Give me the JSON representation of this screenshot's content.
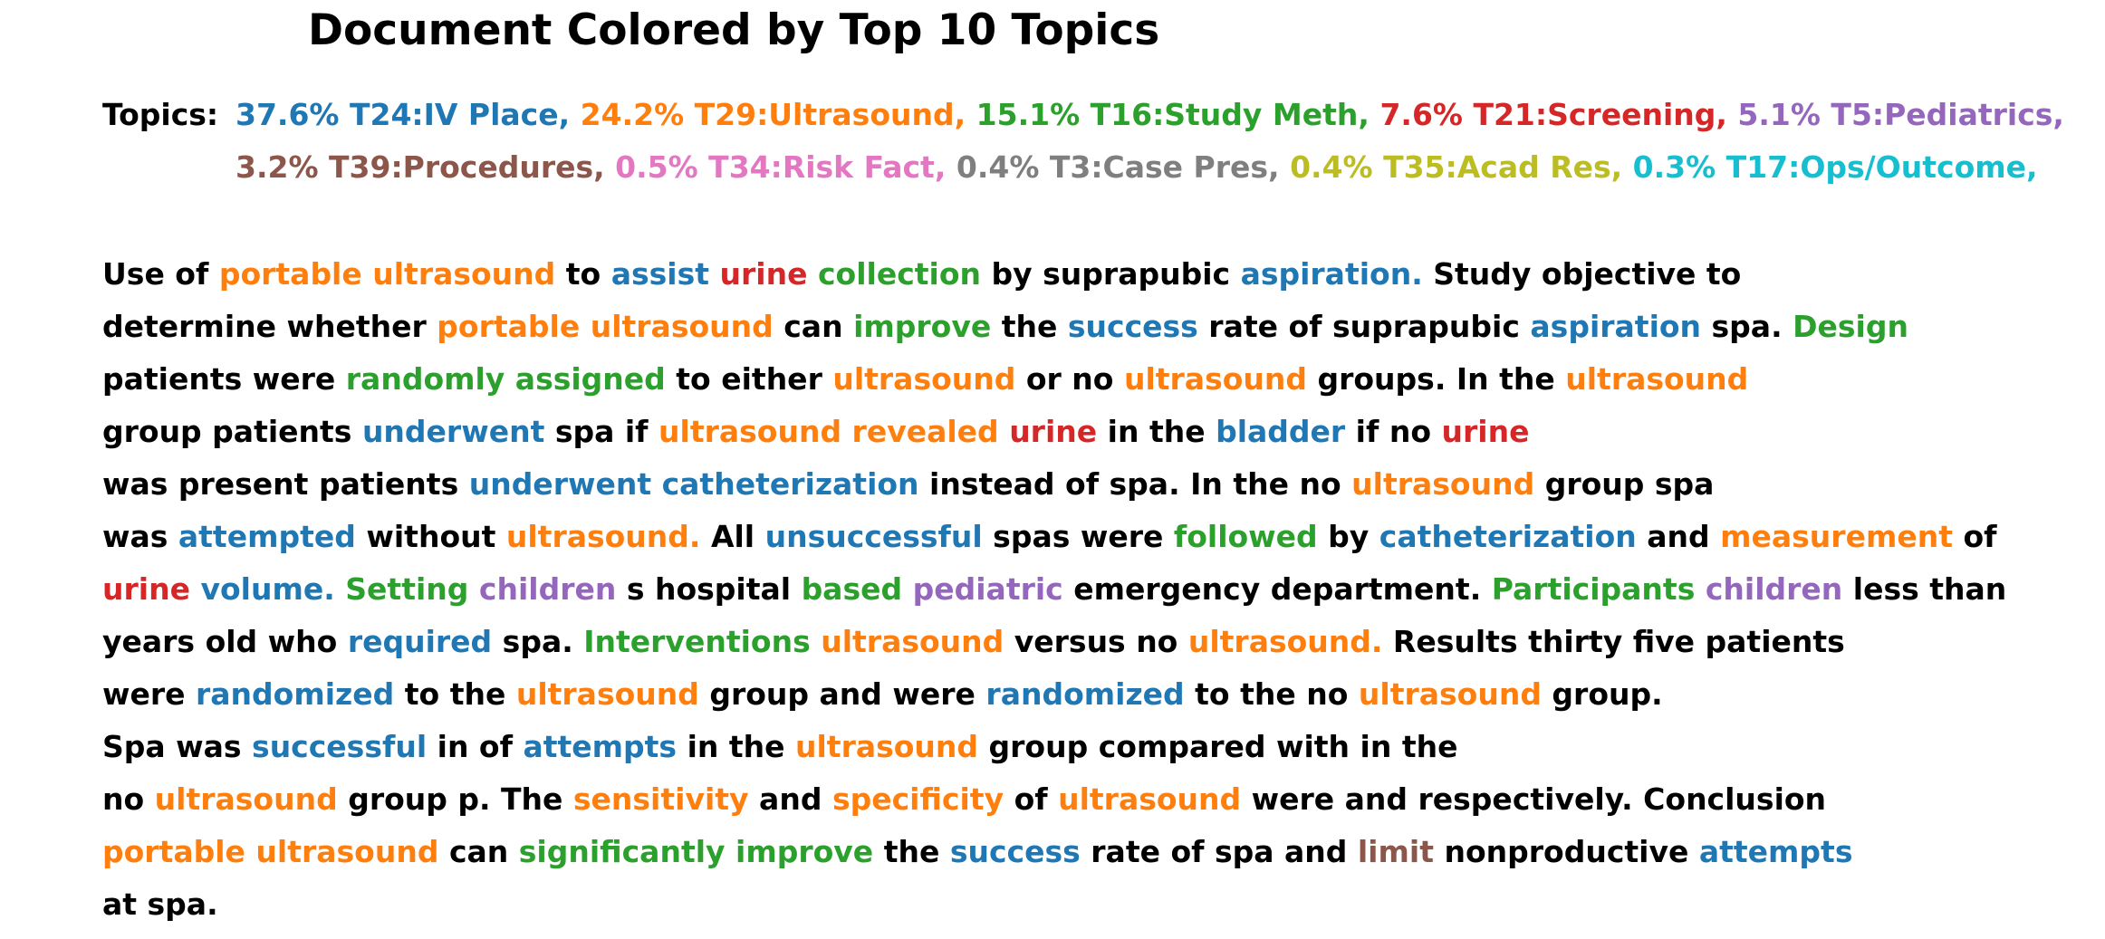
{
  "title": "Document Colored by Top 10 Topics",
  "topics_label": "Topics:",
  "colors": {
    "T24": "#1f77b4",
    "T29": "#ff7f0e",
    "T16": "#2ca02c",
    "T21": "#d62728",
    "T5": "#9467bd",
    "T39": "#8c564b",
    "T34": "#e377c2",
    "T3": "#7f7f7f",
    "T35": "#bcbd22",
    "T17": "#17becf",
    "none": "#000000"
  },
  "topic_lines": [
    [
      {
        "text": "37.6% T24:IV Place,",
        "topic": "T24"
      },
      {
        "text": "24.2% T29:Ultrasound,",
        "topic": "T29"
      },
      {
        "text": "15.1% T16:Study Meth,",
        "topic": "T16"
      },
      {
        "text": "7.6% T21:Screening,",
        "topic": "T21"
      },
      {
        "text": "5.1% T5:Pediatrics,",
        "topic": "T5"
      }
    ],
    [
      {
        "text": "3.2% T39:Procedures,",
        "topic": "T39"
      },
      {
        "text": "0.5% T34:Risk Fact,",
        "topic": "T34"
      },
      {
        "text": "0.4% T3:Case Pres,",
        "topic": "T3"
      },
      {
        "text": "0.4% T35:Acad Res,",
        "topic": "T35"
      },
      {
        "text": "0.3% T17:Ops/Outcome,",
        "topic": "T17"
      }
    ]
  ],
  "document_lines": [
    [
      {
        "text": "Use of ",
        "topic": null
      },
      {
        "text": "portable ultrasound",
        "topic": "T29"
      },
      {
        "text": " to ",
        "topic": null
      },
      {
        "text": "assist",
        "topic": "T24"
      },
      {
        "text": " ",
        "topic": null
      },
      {
        "text": "urine",
        "topic": "T21"
      },
      {
        "text": " ",
        "topic": null
      },
      {
        "text": "collection",
        "topic": "T16"
      },
      {
        "text": " by suprapubic ",
        "topic": null
      },
      {
        "text": "aspiration.",
        "topic": "T24"
      },
      {
        "text": " Study objective to",
        "topic": null
      }
    ],
    [
      {
        "text": "determine whether ",
        "topic": null
      },
      {
        "text": "portable ultrasound",
        "topic": "T29"
      },
      {
        "text": " can ",
        "topic": null
      },
      {
        "text": "improve",
        "topic": "T16"
      },
      {
        "text": " the ",
        "topic": null
      },
      {
        "text": "success",
        "topic": "T24"
      },
      {
        "text": " rate of suprapubic ",
        "topic": null
      },
      {
        "text": "aspiration",
        "topic": "T24"
      },
      {
        "text": " spa. ",
        "topic": null
      },
      {
        "text": "Design",
        "topic": "T16"
      }
    ],
    [
      {
        "text": "patients were ",
        "topic": null
      },
      {
        "text": "randomly assigned",
        "topic": "T16"
      },
      {
        "text": " to either ",
        "topic": null
      },
      {
        "text": "ultrasound",
        "topic": "T29"
      },
      {
        "text": " or no ",
        "topic": null
      },
      {
        "text": "ultrasound",
        "topic": "T29"
      },
      {
        "text": " groups. In the ",
        "topic": null
      },
      {
        "text": "ultrasound",
        "topic": "T29"
      }
    ],
    [
      {
        "text": "group patients ",
        "topic": null
      },
      {
        "text": "underwent",
        "topic": "T24"
      },
      {
        "text": " spa if ",
        "topic": null
      },
      {
        "text": "ultrasound revealed",
        "topic": "T29"
      },
      {
        "text": " ",
        "topic": null
      },
      {
        "text": "urine",
        "topic": "T21"
      },
      {
        "text": " in the ",
        "topic": null
      },
      {
        "text": "bladder",
        "topic": "T24"
      },
      {
        "text": " if no ",
        "topic": null
      },
      {
        "text": "urine",
        "topic": "T21"
      }
    ],
    [
      {
        "text": "was present patients ",
        "topic": null
      },
      {
        "text": "underwent catheterization",
        "topic": "T24"
      },
      {
        "text": " instead of spa. In the no ",
        "topic": null
      },
      {
        "text": "ultrasound",
        "topic": "T29"
      },
      {
        "text": " group spa",
        "topic": null
      }
    ],
    [
      {
        "text": "was ",
        "topic": null
      },
      {
        "text": "attempted",
        "topic": "T24"
      },
      {
        "text": " without ",
        "topic": null
      },
      {
        "text": "ultrasound.",
        "topic": "T29"
      },
      {
        "text": " All ",
        "topic": null
      },
      {
        "text": "unsuccessful",
        "topic": "T24"
      },
      {
        "text": " spas were ",
        "topic": null
      },
      {
        "text": "followed",
        "topic": "T16"
      },
      {
        "text": " by ",
        "topic": null
      },
      {
        "text": "catheterization",
        "topic": "T24"
      },
      {
        "text": " and ",
        "topic": null
      },
      {
        "text": "measurement",
        "topic": "T29"
      },
      {
        "text": " of",
        "topic": null
      }
    ],
    [
      {
        "text": "urine",
        "topic": "T21"
      },
      {
        "text": " ",
        "topic": null
      },
      {
        "text": "volume.",
        "topic": "T24"
      },
      {
        "text": " ",
        "topic": null
      },
      {
        "text": "Setting",
        "topic": "T16"
      },
      {
        "text": " ",
        "topic": null
      },
      {
        "text": "children",
        "topic": "T5"
      },
      {
        "text": " s hospital ",
        "topic": null
      },
      {
        "text": "based",
        "topic": "T16"
      },
      {
        "text": " ",
        "topic": null
      },
      {
        "text": "pediatric",
        "topic": "T5"
      },
      {
        "text": " emergency department. ",
        "topic": null
      },
      {
        "text": "Participants",
        "topic": "T16"
      },
      {
        "text": " ",
        "topic": null
      },
      {
        "text": "children",
        "topic": "T5"
      },
      {
        "text": " less than",
        "topic": null
      }
    ],
    [
      {
        "text": "years old who ",
        "topic": null
      },
      {
        "text": "required",
        "topic": "T24"
      },
      {
        "text": " spa. ",
        "topic": null
      },
      {
        "text": "Interventions",
        "topic": "T16"
      },
      {
        "text": " ",
        "topic": null
      },
      {
        "text": "ultrasound",
        "topic": "T29"
      },
      {
        "text": " versus no ",
        "topic": null
      },
      {
        "text": "ultrasound.",
        "topic": "T29"
      },
      {
        "text": " Results thirty five patients",
        "topic": null
      }
    ],
    [
      {
        "text": "were ",
        "topic": null
      },
      {
        "text": "randomized",
        "topic": "T24"
      },
      {
        "text": " to the ",
        "topic": null
      },
      {
        "text": "ultrasound",
        "topic": "T29"
      },
      {
        "text": " group and were ",
        "topic": null
      },
      {
        "text": "randomized",
        "topic": "T24"
      },
      {
        "text": " to the no ",
        "topic": null
      },
      {
        "text": "ultrasound",
        "topic": "T29"
      },
      {
        "text": " group.",
        "topic": null
      }
    ],
    [
      {
        "text": "Spa was ",
        "topic": null
      },
      {
        "text": "successful",
        "topic": "T24"
      },
      {
        "text": " in of ",
        "topic": null
      },
      {
        "text": "attempts",
        "topic": "T24"
      },
      {
        "text": " in the ",
        "topic": null
      },
      {
        "text": "ultrasound",
        "topic": "T29"
      },
      {
        "text": " group compared with in the",
        "topic": null
      }
    ],
    [
      {
        "text": "no ",
        "topic": null
      },
      {
        "text": "ultrasound",
        "topic": "T29"
      },
      {
        "text": " group p. The ",
        "topic": null
      },
      {
        "text": "sensitivity",
        "topic": "T29"
      },
      {
        "text": " and ",
        "topic": null
      },
      {
        "text": "specificity",
        "topic": "T29"
      },
      {
        "text": " of ",
        "topic": null
      },
      {
        "text": "ultrasound",
        "topic": "T29"
      },
      {
        "text": " were and respectively. Conclusion",
        "topic": null
      }
    ],
    [
      {
        "text": "portable ultrasound",
        "topic": "T29"
      },
      {
        "text": " can ",
        "topic": null
      },
      {
        "text": "significantly improve",
        "topic": "T16"
      },
      {
        "text": " the ",
        "topic": null
      },
      {
        "text": "success",
        "topic": "T24"
      },
      {
        "text": " rate of spa and ",
        "topic": null
      },
      {
        "text": "limit",
        "topic": "T39"
      },
      {
        "text": " nonproductive ",
        "topic": null
      },
      {
        "text": "attempts",
        "topic": "T24"
      }
    ],
    [
      {
        "text": "at spa.",
        "topic": null
      }
    ]
  ]
}
